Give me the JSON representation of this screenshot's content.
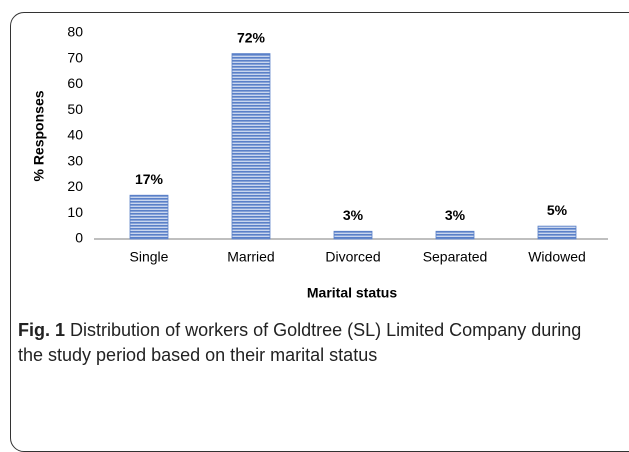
{
  "chart_data": {
    "type": "bar",
    "categories": [
      "Single",
      "Married",
      "Divorced",
      "Separated",
      "Widowed"
    ],
    "values": [
      17,
      72,
      3,
      3,
      5
    ],
    "value_labels": [
      "17%",
      "72%",
      "3%",
      "3%",
      "5%"
    ],
    "color": "#5a80c8",
    "ylim": [
      0,
      80
    ],
    "yticks": [
      0,
      10,
      20,
      30,
      40,
      50,
      60,
      70,
      80
    ],
    "ylabel": "% Responses",
    "xlabel": "Marital status",
    "grid": false
  },
  "caption": {
    "label": "Fig. 1",
    "text": "Distribution of workers of Goldtree (SL) Limited Company during the study period based on their marital status"
  }
}
